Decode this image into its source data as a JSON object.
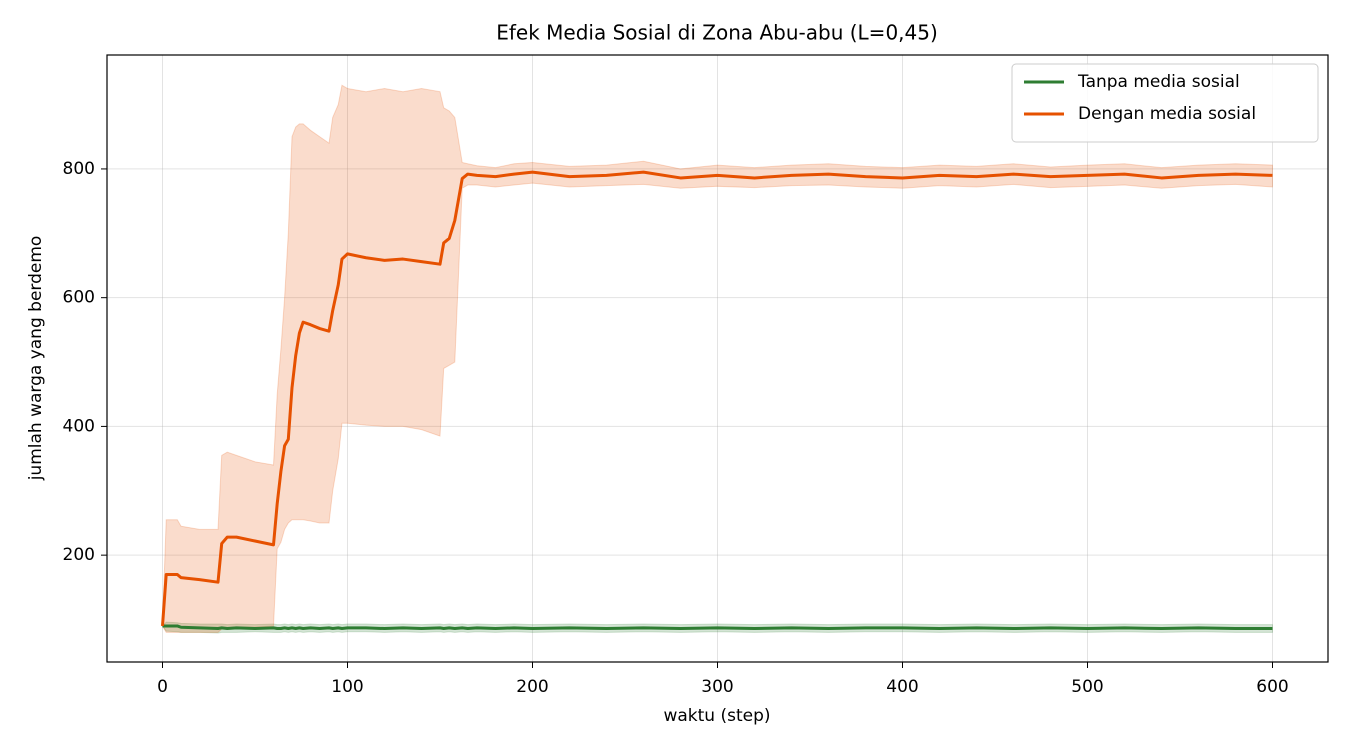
{
  "chart_data": {
    "type": "line",
    "title": "Efek Media Sosial di Zona Abu-abu (L=0,45)",
    "x_label": "waktu (step)",
    "y_label": "jumlah warga yang berdemo",
    "x": [
      0,
      2,
      8,
      10,
      20,
      30,
      32,
      35,
      40,
      50,
      60,
      62,
      64,
      66,
      68,
      70,
      72,
      74,
      76,
      80,
      85,
      90,
      92,
      95,
      97,
      100,
      110,
      120,
      130,
      140,
      150,
      152,
      155,
      158,
      162,
      165,
      170,
      180,
      190,
      200,
      220,
      240,
      260,
      280,
      300,
      320,
      340,
      360,
      380,
      400,
      420,
      440,
      460,
      480,
      500,
      520,
      540,
      560,
      580,
      600
    ],
    "series": [
      {
        "name": "Tanpa media sosial",
        "color": "#2e7d32",
        "values": [
          90,
          90,
          90,
          88,
          87,
          86,
          87,
          86,
          87,
          86,
          87,
          86,
          86,
          87,
          86,
          87,
          86,
          87,
          86,
          87,
          86,
          87,
          86,
          87,
          86,
          87,
          87,
          86,
          87,
          86,
          87,
          86,
          87,
          86,
          87,
          86,
          87,
          86,
          87,
          86,
          87,
          86,
          87,
          86,
          87,
          86,
          87,
          86,
          87,
          87,
          86,
          87,
          86,
          87,
          86,
          87,
          86,
          87,
          86,
          86
        ],
        "lower": [
          90,
          82,
          81,
          80,
          80,
          79,
          80,
          80,
          80,
          81,
          80,
          80,
          80,
          81,
          80,
          81,
          80,
          81,
          80,
          81,
          80,
          81,
          80,
          81,
          80,
          81,
          81,
          80,
          81,
          80,
          81,
          80,
          81,
          80,
          81,
          80,
          81,
          80,
          81,
          80,
          81,
          80,
          81,
          80,
          81,
          80,
          81,
          80,
          81,
          81,
          80,
          81,
          80,
          81,
          80,
          81,
          80,
          81,
          80,
          80
        ],
        "upper": [
          90,
          96,
          95,
          94,
          93,
          93,
          93,
          92,
          93,
          92,
          93,
          92,
          92,
          93,
          92,
          93,
          92,
          93,
          92,
          93,
          92,
          93,
          92,
          93,
          92,
          93,
          93,
          92,
          93,
          92,
          93,
          92,
          93,
          92,
          93,
          92,
          93,
          92,
          93,
          92,
          93,
          92,
          93,
          92,
          93,
          92,
          93,
          92,
          93,
          93,
          92,
          93,
          92,
          93,
          92,
          93,
          92,
          93,
          92,
          92
        ]
      },
      {
        "name": "Dengan media sosial",
        "color": "#e65100",
        "values": [
          90,
          170,
          170,
          165,
          162,
          158,
          218,
          228,
          228,
          222,
          216,
          280,
          330,
          370,
          380,
          460,
          510,
          545,
          562,
          558,
          552,
          548,
          580,
          620,
          660,
          668,
          662,
          658,
          660,
          656,
          652,
          685,
          692,
          720,
          785,
          792,
          790,
          788,
          792,
          795,
          788,
          790,
          795,
          786,
          790,
          786,
          790,
          792,
          788,
          786,
          790,
          788,
          792,
          788,
          790,
          792,
          786,
          790,
          792,
          790
        ],
        "lower": [
          90,
          80,
          80,
          80,
          80,
          80,
          85,
          85,
          88,
          88,
          90,
          210,
          220,
          240,
          250,
          255,
          255,
          255,
          255,
          253,
          250,
          250,
          300,
          350,
          405,
          405,
          402,
          400,
          400,
          395,
          385,
          490,
          495,
          500,
          770,
          775,
          775,
          772,
          775,
          778,
          772,
          774,
          776,
          770,
          773,
          771,
          774,
          775,
          772,
          770,
          774,
          772,
          776,
          771,
          773,
          775,
          770,
          774,
          776,
          772
        ],
        "upper": [
          90,
          255,
          255,
          245,
          240,
          240,
          355,
          360,
          355,
          345,
          340,
          450,
          520,
          600,
          700,
          850,
          865,
          870,
          870,
          860,
          850,
          840,
          880,
          900,
          930,
          925,
          920,
          925,
          920,
          925,
          920,
          895,
          890,
          880,
          810,
          808,
          805,
          802,
          808,
          810,
          804,
          806,
          812,
          800,
          806,
          802,
          806,
          808,
          804,
          802,
          806,
          804,
          808,
          803,
          806,
          808,
          802,
          806,
          808,
          806
        ]
      }
    ],
    "band_opacity": 0.2,
    "xlim": [
      -30,
      630
    ],
    "ylim": [
      34,
      977
    ],
    "xticks": [
      0,
      100,
      200,
      300,
      400,
      500,
      600
    ],
    "yticks": [
      200,
      400,
      600,
      800
    ],
    "grid": true,
    "legend": "upper right"
  }
}
